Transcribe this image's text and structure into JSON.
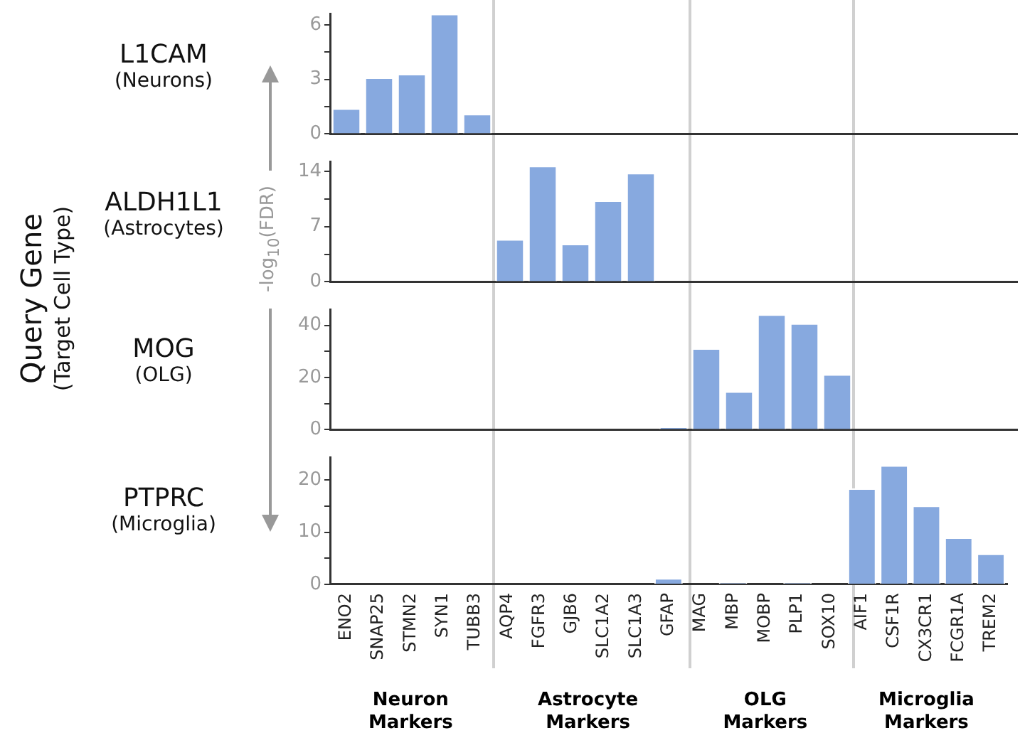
{
  "chart_data": [
    {
      "type": "bar",
      "title": "L1CAM",
      "subtitle": "(Neurons)",
      "annotations": [
        "Query Gene",
        "(Target Cell Type)"
      ],
      "color": "#87a9df",
      "values": [
        1.4,
        3.1,
        3.3,
        6.6,
        1.1,
        0,
        0,
        0,
        0,
        0,
        0,
        0,
        0,
        0,
        0,
        0,
        0,
        0,
        0,
        0,
        0
      ],
      "ylim": [
        0,
        6.6
      ],
      "yticks": [
        0,
        {
          "value": 1.5,
          "label": null
        },
        3,
        {
          "value": 4.5,
          "label": null
        },
        6
      ],
      "grid": false,
      "tick_labels": "y"
    },
    {
      "type": "bar",
      "title": "ALDH1L1",
      "subtitle": "(Astrocytes)",
      "ylabel": "-log$_{10}$(FDR)",
      "color": "#87a9df",
      "values": [
        0,
        0,
        0,
        0,
        0,
        5.4,
        14.7,
        4.8,
        10.3,
        13.8,
        0,
        0,
        0,
        0,
        0,
        null,
        0,
        0,
        0,
        0,
        0
      ],
      "ylim": [
        0,
        15.2
      ],
      "yticks": [
        0,
        {
          "value": 3.5,
          "label": null
        },
        7,
        {
          "value": 10.5,
          "label": null
        },
        14
      ],
      "grid": false,
      "tick_labels": "y"
    },
    {
      "type": "bar",
      "title": "MOG",
      "subtitle": "(OLG)",
      "color": "#87a9df",
      "values": [
        0,
        0,
        0,
        0,
        0,
        0,
        0,
        0,
        0,
        0,
        1,
        31.2,
        14.7,
        44.2,
        40.8,
        21.2,
        0,
        0,
        0,
        0,
        0
      ],
      "ylim": [
        0,
        46
      ],
      "yticks": [
        0,
        {
          "value": 10,
          "label": null
        },
        20,
        {
          "value": 30,
          "label": null
        },
        40
      ],
      "grid": false,
      "tick_labels": "y"
    },
    {
      "type": "bar",
      "title": "PTPRC",
      "subtitle": "(Microglia)",
      "categories": [
        "ENO2",
        "SNAP25",
        "STMN2",
        "SYN1",
        "TUBB3",
        "AQP4",
        "FGFR3",
        "GJB6",
        "SLC1A2",
        "SLC1A3",
        "GFAP",
        "MAG",
        "MBP",
        "MOBP",
        "PLP1",
        "SOX10",
        "AIF1",
        "CSF1R",
        "CX3CR1",
        "FCGR1A",
        "TREM2"
      ],
      "color": "#87a9df",
      "values": [
        0,
        0,
        0,
        0,
        0,
        0,
        0,
        0,
        0,
        0,
        1.2,
        0,
        0.3,
        null,
        0.3,
        0,
        18.4,
        22.8,
        15.1,
        9.0,
        5.9
      ],
      "ylim": [
        0,
        24.3
      ],
      "yticks": [
        0,
        {
          "value": 5,
          "label": null
        },
        10,
        {
          "value": 15,
          "label": null
        },
        20
      ],
      "grid": false,
      "annotations": [
        "Neuron Markers",
        "Astrocyte Markers",
        "OLG Markers",
        "Microglia Markers"
      ]
    }
  ]
}
